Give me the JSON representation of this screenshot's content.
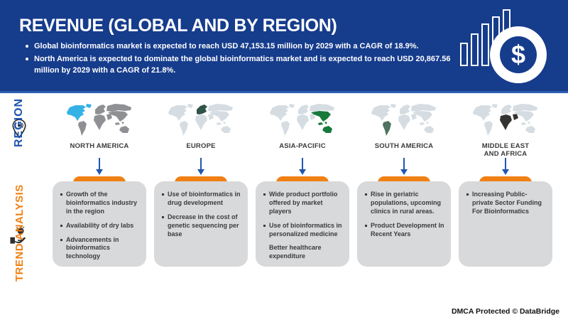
{
  "header": {
    "title": "REVENUE (GLOBAL AND BY REGION)",
    "bullets": [
      "Global bioinformatics market is expected to reach USD 47,153.15 million by 2029 with a CAGR of 18.9%.",
      "North America is expected to dominate the global bioinformatics market and is expected to reach USD 20,867.56 million by 2029 with a CAGR of 21.8%."
    ],
    "icon": {
      "dollar_symbol": "$"
    }
  },
  "side_labels": {
    "region": "REGION",
    "trend": "TREND ANALYSIS"
  },
  "regions": [
    {
      "label_line1": "NORTH AMERICA",
      "label_line2": "",
      "map": {
        "base_color": "#8f9093",
        "highlight_color": "#35b2e5",
        "highlight": [
          "northamerica",
          "greenland"
        ]
      },
      "trends": [
        {
          "text": "Growth of the bioinformatics industry in the region",
          "bullet": true
        },
        {
          "text": "Availability of dry labs",
          "bullet": true
        },
        {
          "text": "Advancements in bioinformatics technology",
          "bullet": true
        }
      ]
    },
    {
      "label_line1": "EUROPE",
      "label_line2": "",
      "map": {
        "base_color": "#d5dde2",
        "highlight_color": "#2f5348",
        "highlight": [
          "europe"
        ]
      },
      "trends": [
        {
          "text": "Use of bioinformatics in drug development",
          "bullet": true
        },
        {
          "text": "Decrease in the cost of genetic sequencing per base",
          "bullet": true
        }
      ]
    },
    {
      "label_line1": "ASIA-PACIFIC",
      "label_line2": "",
      "map": {
        "base_color": "#d5dde2",
        "highlight_color": "#17793c",
        "highlight": [
          "asia_south",
          "islands",
          "australia"
        ]
      },
      "trends": [
        {
          "text": "Wide product portfolio offered by market players",
          "bullet": true
        },
        {
          "text": "Use of bioinformatics in personalized medicine",
          "bullet": true
        },
        {
          "text": "Better healthcare expenditure",
          "bullet": false
        }
      ]
    },
    {
      "label_line1": "SOUTH AMERICA",
      "label_line2": "",
      "map": {
        "base_color": "#d5dde2",
        "highlight_color": "#4f7361",
        "highlight": [
          "southamerica"
        ]
      },
      "trends": [
        {
          "text": "Rise in geriatric populations, upcoming clinics in rural areas.",
          "bullet": true
        },
        {
          "text": "Product Development In Recent Years",
          "bullet": true
        }
      ]
    },
    {
      "label_line1": "MIDDLE EAST",
      "label_line2": "AND AFRICA",
      "map": {
        "base_color": "#d5dde2",
        "highlight_color": "#34332f",
        "highlight": [
          "africa",
          "arabia"
        ]
      },
      "trends": [
        {
          "text": "Increasing Public-private Sector Funding For Bioinformatics",
          "bullet": true
        }
      ]
    }
  ],
  "footer": {
    "text": "DMCA Protected © DataBridge"
  },
  "colors": {
    "header_bg": "#163c8c",
    "header_edge": "#2e5fb3",
    "region_label_blue": "#1d55b0",
    "trend_label_orange": "#f08014",
    "arrow_blue": "#2156ae",
    "arc_orange": "#f08014",
    "box_gray": "#d8d9da",
    "text_dark": "#3b3b3b"
  }
}
